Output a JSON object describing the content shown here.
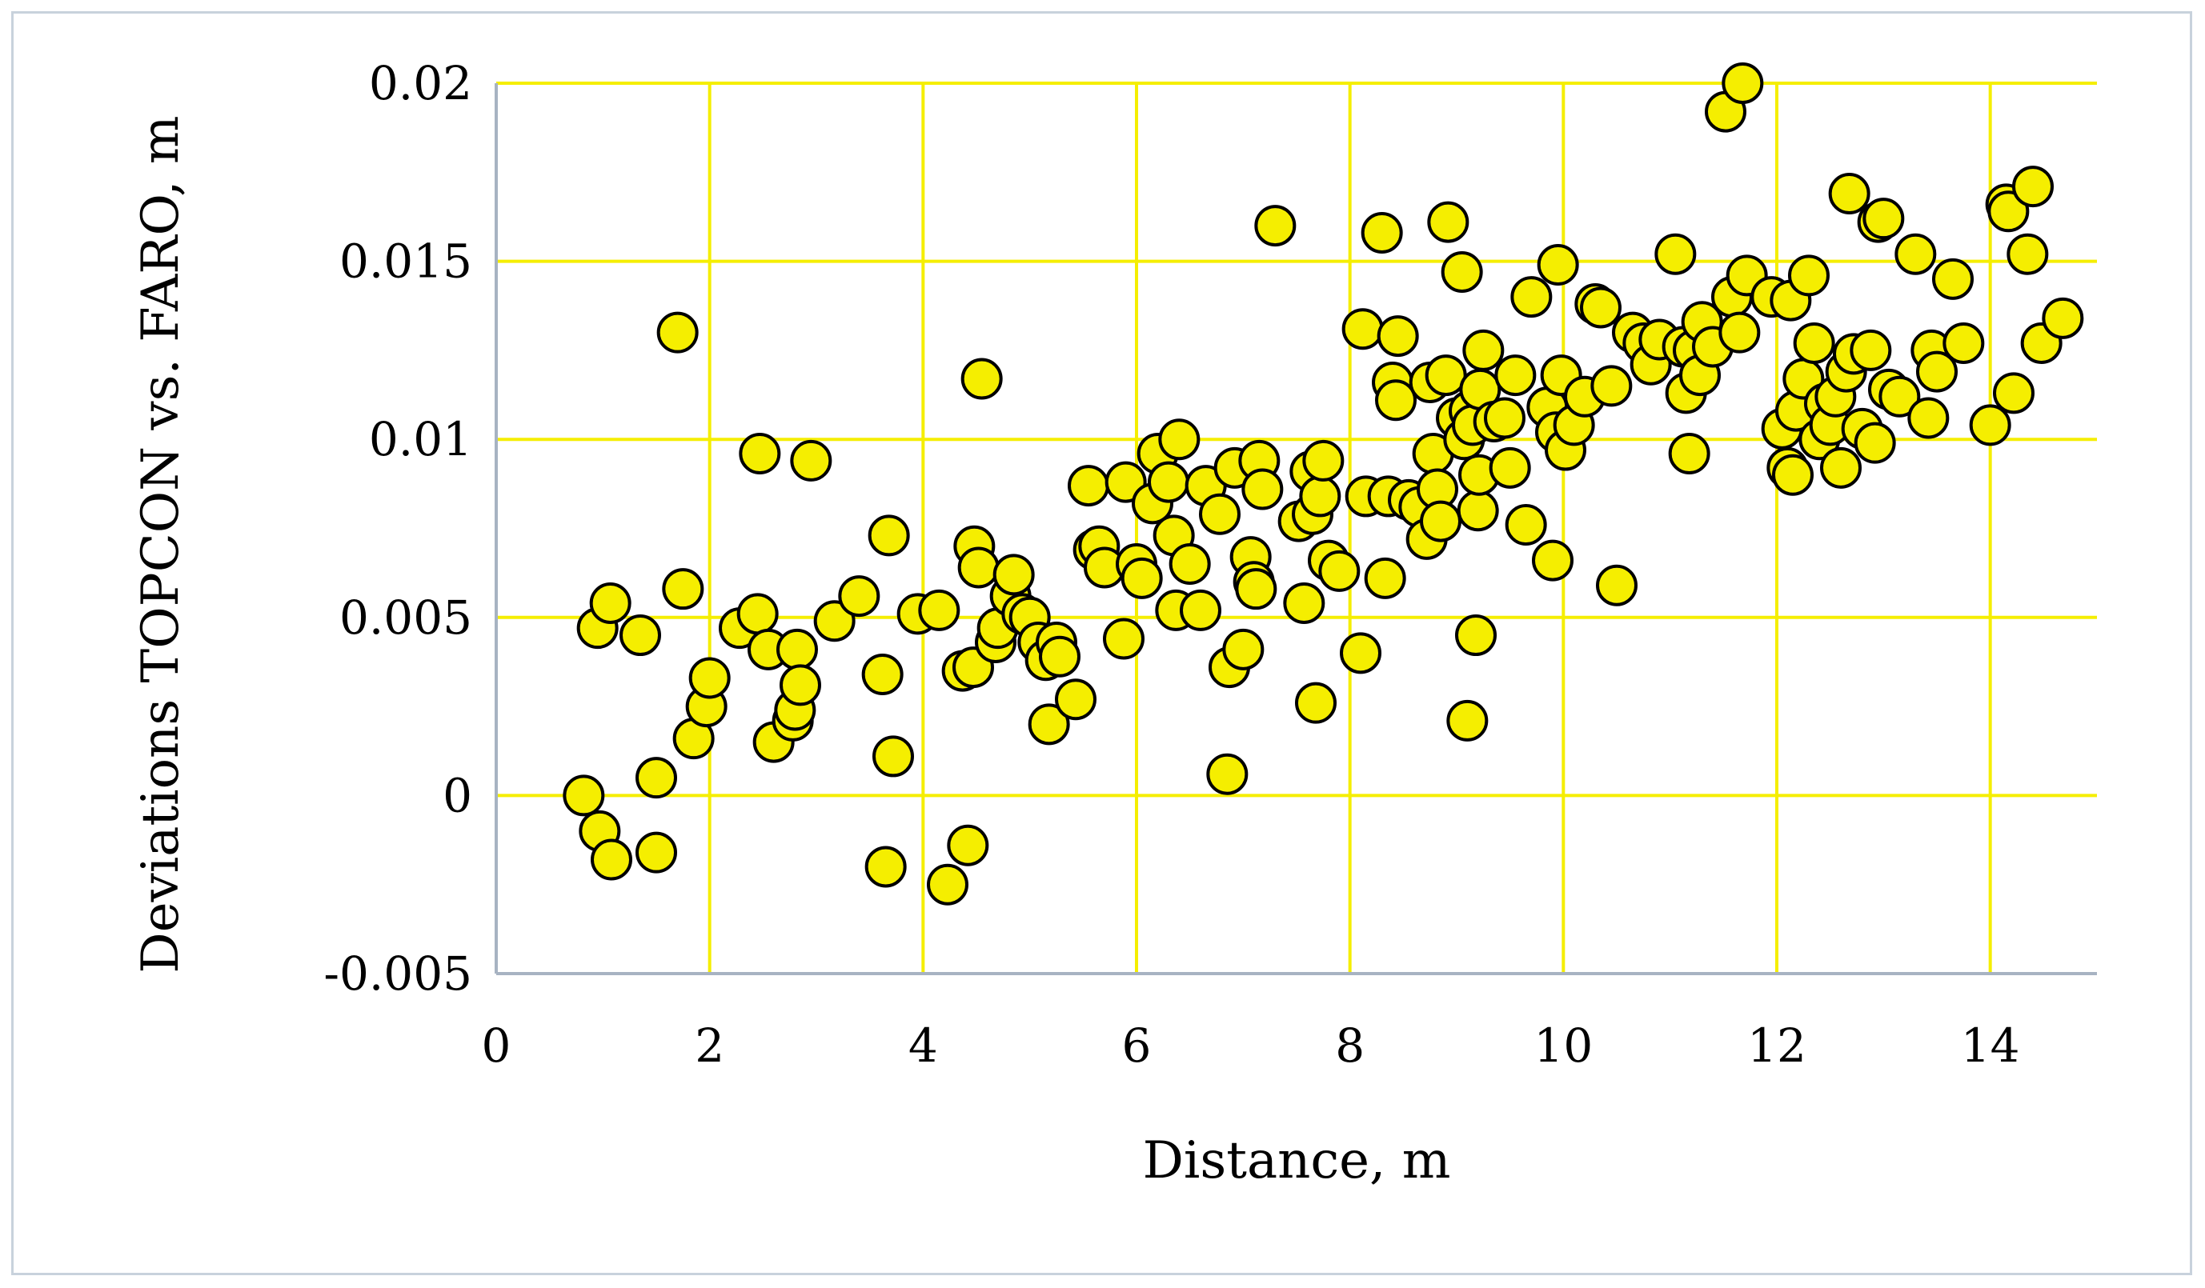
{
  "chart_data": {
    "type": "scatter",
    "xlabel": "Distance, m",
    "ylabel": "Deviations TOPCON vs. FARO, m",
    "xlim": [
      0,
      15
    ],
    "ylim": [
      -0.005,
      0.02
    ],
    "x_ticks": [
      "0",
      "2",
      "4",
      "6",
      "8",
      "10",
      "12",
      "14"
    ],
    "y_ticks": [
      "-0.005",
      "0",
      "0.005",
      "0.01",
      "0.015",
      "0.02"
    ],
    "grid": true,
    "colors": {
      "marker_fill": "#f5ee00",
      "marker_stroke": "#000000",
      "grid": "#f5ee00",
      "axis": "#a7b3c2"
    },
    "series": [
      {
        "points": [
          [
            0.82,
            0.0
          ],
          [
            0.97,
            -0.001
          ],
          [
            1.08,
            -0.0018
          ],
          [
            0.95,
            0.0047
          ],
          [
            1.07,
            0.0054
          ],
          [
            1.35,
            0.0045
          ],
          [
            1.5,
            0.0005
          ],
          [
            1.5,
            -0.0016
          ],
          [
            1.7,
            0.013
          ],
          [
            1.75,
            0.0058
          ],
          [
            1.85,
            0.0016
          ],
          [
            1.97,
            0.0025
          ],
          [
            2.0,
            0.0033
          ],
          [
            2.28,
            0.0047
          ],
          [
            2.45,
            0.0051
          ],
          [
            2.47,
            0.0096
          ],
          [
            2.55,
            0.0041
          ],
          [
            2.6,
            0.0015
          ],
          [
            2.78,
            0.0021
          ],
          [
            2.8,
            0.0024
          ],
          [
            2.82,
            0.0041
          ],
          [
            2.85,
            0.0031
          ],
          [
            2.95,
            0.0094
          ],
          [
            3.17,
            0.0049
          ],
          [
            3.4,
            0.0056
          ],
          [
            3.62,
            0.0034
          ],
          [
            3.65,
            -0.002
          ],
          [
            3.68,
            0.0073
          ],
          [
            3.72,
            0.0011
          ],
          [
            3.95,
            0.0051
          ],
          [
            4.15,
            0.0052
          ],
          [
            4.23,
            -0.0025
          ],
          [
            4.37,
            0.0035
          ],
          [
            4.42,
            -0.0014
          ],
          [
            4.47,
            0.0036
          ],
          [
            4.48,
            0.007
          ],
          [
            4.52,
            0.0064
          ],
          [
            4.55,
            0.0117
          ],
          [
            4.68,
            0.0043
          ],
          [
            4.7,
            0.0047
          ],
          [
            4.82,
            0.0056
          ],
          [
            4.85,
            0.0062
          ],
          [
            4.93,
            0.0051
          ],
          [
            5.0,
            0.005
          ],
          [
            5.08,
            0.0043
          ],
          [
            5.15,
            0.0038
          ],
          [
            5.18,
            0.002
          ],
          [
            5.25,
            0.0043
          ],
          [
            5.28,
            0.0039
          ],
          [
            5.43,
            0.0027
          ],
          [
            5.55,
            0.0087
          ],
          [
            5.6,
            0.0069
          ],
          [
            5.65,
            0.007
          ],
          [
            5.7,
            0.0064
          ],
          [
            5.88,
            0.0044
          ],
          [
            5.9,
            0.0088
          ],
          [
            6.0,
            0.0065
          ],
          [
            6.05,
            0.0061
          ],
          [
            6.15,
            0.0082
          ],
          [
            6.2,
            0.0096
          ],
          [
            6.3,
            0.0088
          ],
          [
            6.35,
            0.0073
          ],
          [
            6.37,
            0.0052
          ],
          [
            6.4,
            0.01
          ],
          [
            6.5,
            0.0065
          ],
          [
            6.6,
            0.0052
          ],
          [
            6.65,
            0.0087
          ],
          [
            6.78,
            0.0079
          ],
          [
            6.85,
            0.0006
          ],
          [
            6.87,
            0.0036
          ],
          [
            6.92,
            0.0092
          ],
          [
            7.0,
            0.0041
          ],
          [
            7.07,
            0.0067
          ],
          [
            7.1,
            0.006
          ],
          [
            7.12,
            0.0058
          ],
          [
            7.15,
            0.0094
          ],
          [
            7.18,
            0.0086
          ],
          [
            7.3,
            0.016
          ],
          [
            7.52,
            0.0077
          ],
          [
            7.57,
            0.0054
          ],
          [
            7.63,
            0.0091
          ],
          [
            7.65,
            0.0079
          ],
          [
            7.68,
            0.0026
          ],
          [
            7.72,
            0.0084
          ],
          [
            7.75,
            0.0094
          ],
          [
            7.8,
            0.0066
          ],
          [
            7.9,
            0.0063
          ],
          [
            8.1,
            0.004
          ],
          [
            8.12,
            0.0131
          ],
          [
            8.15,
            0.0084
          ],
          [
            8.3,
            0.0158
          ],
          [
            8.33,
            0.0061
          ],
          [
            8.36,
            0.0084
          ],
          [
            8.4,
            0.0116
          ],
          [
            8.43,
            0.0111
          ],
          [
            8.45,
            0.0129
          ],
          [
            8.55,
            0.0083
          ],
          [
            8.65,
            0.0081
          ],
          [
            8.72,
            0.0072
          ],
          [
            8.75,
            0.0116
          ],
          [
            8.78,
            0.0096
          ],
          [
            8.82,
            0.0086
          ],
          [
            8.85,
            0.0077
          ],
          [
            8.9,
            0.0118
          ],
          [
            8.92,
            0.0161
          ],
          [
            9.0,
            0.0106
          ],
          [
            9.05,
            0.0147
          ],
          [
            9.07,
            0.01
          ],
          [
            9.1,
            0.0021
          ],
          [
            9.12,
            0.0108
          ],
          [
            9.15,
            0.0104
          ],
          [
            9.18,
            0.0045
          ],
          [
            9.2,
            0.008
          ],
          [
            9.21,
            0.009
          ],
          [
            9.22,
            0.0114
          ],
          [
            9.25,
            0.0125
          ],
          [
            9.35,
            0.0105
          ],
          [
            9.45,
            0.0106
          ],
          [
            9.5,
            0.0092
          ],
          [
            9.55,
            0.0118
          ],
          [
            9.65,
            0.0076
          ],
          [
            9.7,
            0.014
          ],
          [
            9.85,
            0.0109
          ],
          [
            9.9,
            0.0066
          ],
          [
            9.93,
            0.0102
          ],
          [
            9.95,
            0.0149
          ],
          [
            9.98,
            0.0118
          ],
          [
            10.02,
            0.0097
          ],
          [
            10.1,
            0.0104
          ],
          [
            10.2,
            0.0112
          ],
          [
            10.3,
            0.0138
          ],
          [
            10.35,
            0.0137
          ],
          [
            10.45,
            0.0115
          ],
          [
            10.5,
            0.0059
          ],
          [
            10.65,
            0.013
          ],
          [
            10.75,
            0.0127
          ],
          [
            10.82,
            0.0121
          ],
          [
            10.9,
            0.0128
          ],
          [
            11.05,
            0.0152
          ],
          [
            11.12,
            0.0126
          ],
          [
            11.15,
            0.0113
          ],
          [
            11.18,
            0.0096
          ],
          [
            11.22,
            0.0125
          ],
          [
            11.28,
            0.0118
          ],
          [
            11.3,
            0.0133
          ],
          [
            11.4,
            0.0126
          ],
          [
            11.52,
            0.0192
          ],
          [
            11.58,
            0.014
          ],
          [
            11.65,
            0.013
          ],
          [
            11.68,
            0.02
          ],
          [
            11.72,
            0.0146
          ],
          [
            11.95,
            0.014
          ],
          [
            12.05,
            0.0103
          ],
          [
            12.1,
            0.0092
          ],
          [
            12.13,
            0.0139
          ],
          [
            12.15,
            0.009
          ],
          [
            12.18,
            0.0108
          ],
          [
            12.25,
            0.0117
          ],
          [
            12.3,
            0.0146
          ],
          [
            12.35,
            0.0127
          ],
          [
            12.4,
            0.01
          ],
          [
            12.45,
            0.011
          ],
          [
            12.5,
            0.0104
          ],
          [
            12.55,
            0.0112
          ],
          [
            12.6,
            0.0092
          ],
          [
            12.65,
            0.0119
          ],
          [
            12.68,
            0.0169
          ],
          [
            12.72,
            0.0124
          ],
          [
            12.8,
            0.0103
          ],
          [
            12.88,
            0.0125
          ],
          [
            12.92,
            0.0099
          ],
          [
            12.95,
            0.0161
          ],
          [
            13.0,
            0.0162
          ],
          [
            13.05,
            0.0114
          ],
          [
            13.15,
            0.0112
          ],
          [
            13.3,
            0.0152
          ],
          [
            13.42,
            0.0106
          ],
          [
            13.45,
            0.0125
          ],
          [
            13.5,
            0.0119
          ],
          [
            13.65,
            0.0145
          ],
          [
            13.75,
            0.0127
          ],
          [
            14.0,
            0.0104
          ],
          [
            14.15,
            0.0166
          ],
          [
            14.17,
            0.0164
          ],
          [
            14.22,
            0.0113
          ],
          [
            14.35,
            0.0152
          ],
          [
            14.4,
            0.0171
          ],
          [
            14.48,
            0.0127
          ],
          [
            14.68,
            0.0134
          ]
        ]
      }
    ]
  }
}
